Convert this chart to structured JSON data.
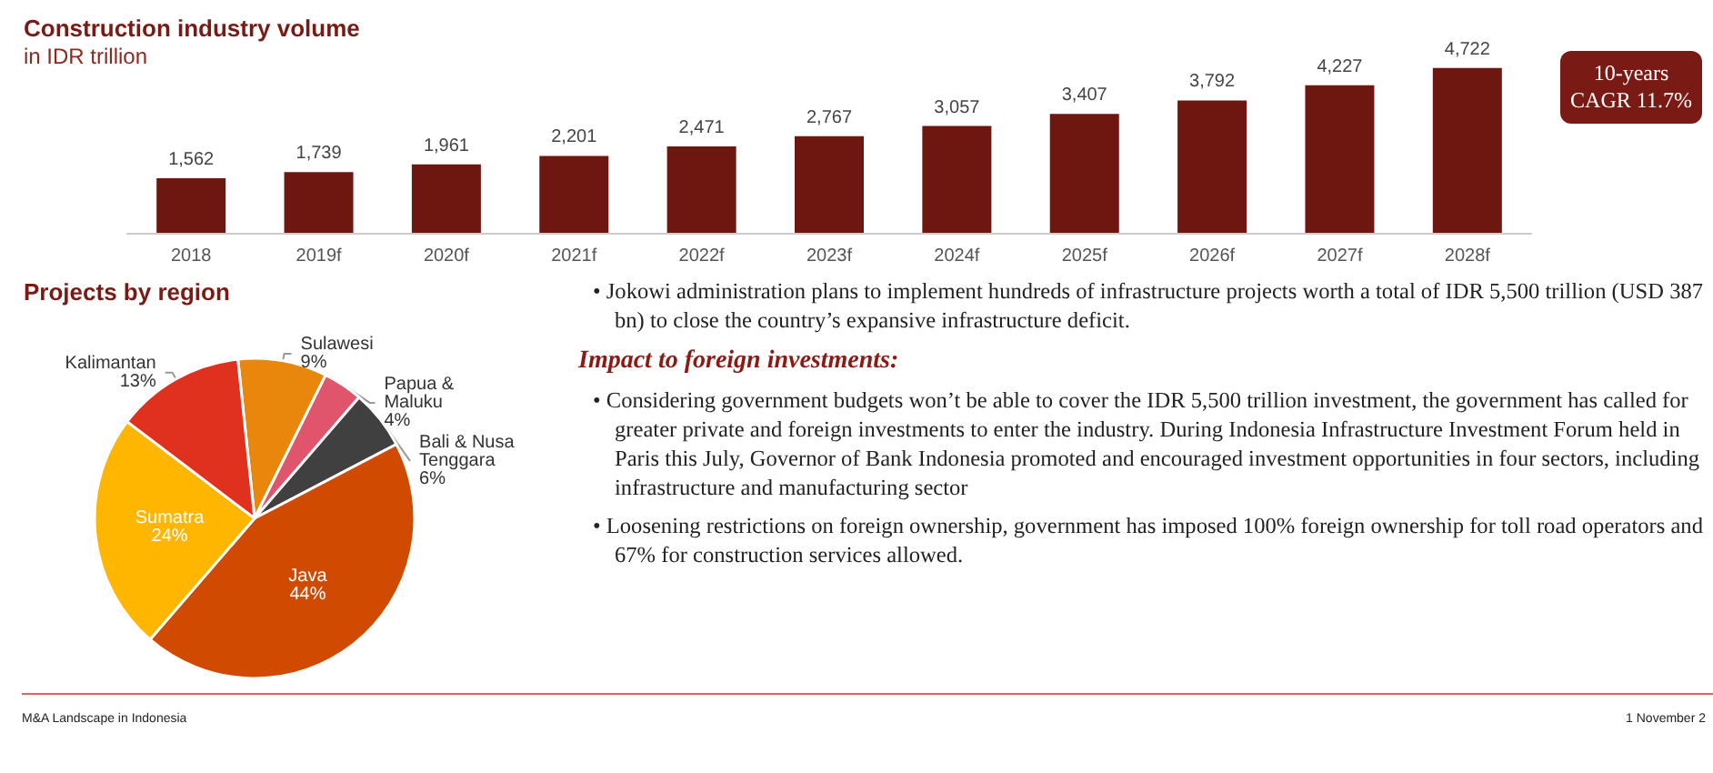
{
  "chart_data": [
    {
      "type": "bar",
      "title": "Construction industry volume",
      "subtitle": "in IDR trillion",
      "categories": [
        "2018",
        "2019f",
        "2020f",
        "2021f",
        "2022f",
        "2023f",
        "2024f",
        "2025f",
        "2026f",
        "2027f",
        "2028f"
      ],
      "values": [
        1562,
        1739,
        1961,
        2201,
        2471,
        2767,
        3057,
        3407,
        3792,
        4227,
        4722
      ],
      "color": "#6e1610",
      "value_labels": [
        "1,562",
        "1,739",
        "1,961",
        "2,201",
        "2,471",
        "2,767",
        "3,057",
        "3,407",
        "3,792",
        "4,227",
        "4,722"
      ],
      "annotations": [
        "10-years CAGR 11.7%"
      ]
    },
    {
      "type": "pie",
      "title": "Projects by region",
      "categories": [
        "Sulawesi",
        "Papua & Maluku",
        "Bali & Nusa Tenggara",
        "Java",
        "Sumatra",
        "Kalimantan"
      ],
      "values": [
        9,
        4,
        6,
        44,
        24,
        13
      ],
      "value_labels": [
        "9%",
        "4%",
        "6%",
        "44%",
        "24%",
        "13%"
      ],
      "colors": [
        "#e8870c",
        "#e0546c",
        "#404040",
        "#d04a02",
        "#ffb600",
        "#e0301e"
      ]
    },
    {
      "type": "other",
      "subtitle": "Impact to foreign investments:",
      "annotations": [
        "• Jokowi administration plans to implement hundreds of infrastructure projects worth a total of IDR 5,500 trillion (USD 387 bn) to close the country’s expansive infrastructure deficit.",
        "• Considering government budgets won’t be able to cover the IDR 5,500 trillion investment, the government has called for greater private and foreign investments to enter the industry. During Indonesia Infrastructure Investment Forum held in Paris this July, Governor of Bank Indonesia promoted and encouraged investment opportunities in four sectors, including infrastructure and manufacturing sector",
        "• Loosening restrictions on foreign ownership, government has imposed 100% foreign ownership for toll road operators and 67% for construction services allowed.",
        "M&A Landscape in Indonesia",
        "1 November 2"
      ]
    }
  ]
}
